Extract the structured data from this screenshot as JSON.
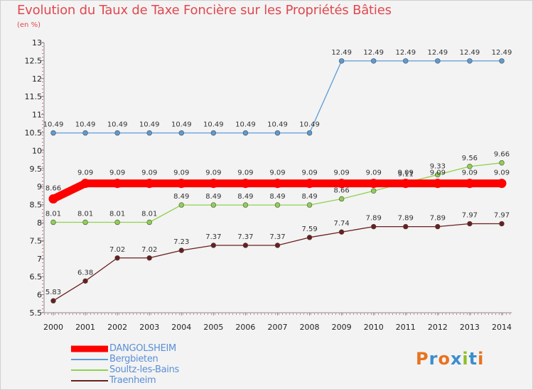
{
  "header": {
    "title": "Evolution du Taux de Taxe Foncière sur les Propriétés Bâties",
    "unit": "(en %)"
  },
  "logo": {
    "letters": [
      "P",
      "r",
      "o",
      "x",
      "i",
      "t",
      "i"
    ],
    "colors": [
      "#e8731e",
      "#3b8ed0",
      "#e8731e",
      "#3b8ed0",
      "#8cbf26",
      "#3b8ed0",
      "#e8731e"
    ]
  },
  "chart_data": {
    "type": "line",
    "title": "Evolution du Taux de Taxe Foncière sur les Propriétés Bâties",
    "ylabel": "(en %)",
    "xlabel": "",
    "ylim": [
      5.5,
      13
    ],
    "yticks": [
      "5.5",
      "6",
      "6.5",
      "7",
      "7.5",
      "8",
      "8.5",
      "9",
      "9.5",
      "10",
      "10.5",
      "11",
      "11.5",
      "12",
      "12.5",
      "13"
    ],
    "x": [
      "2000",
      "2001",
      "2002",
      "2003",
      "2004",
      "2005",
      "2006",
      "2007",
      "2008",
      "2009",
      "2010",
      "2011",
      "2012",
      "2013",
      "2014"
    ],
    "series": [
      {
        "name": "Bergbieten",
        "color": "#5b9bd5",
        "values": [
          10.49,
          10.49,
          10.49,
          10.49,
          10.49,
          10.49,
          10.49,
          10.49,
          10.49,
          12.49,
          12.49,
          12.49,
          12.49,
          12.49,
          12.49
        ],
        "labels": [
          "10.49",
          "10.49",
          "10.49",
          "10.49",
          "10.49",
          "10.49",
          "10.49",
          "10.49",
          "10.49",
          "12.49",
          "12.49",
          "12.49",
          "12.49",
          "12.49",
          "12.49"
        ]
      },
      {
        "name": "Soultz-les-Bains",
        "color": "#8fd14f",
        "values": [
          8.01,
          8.01,
          8.01,
          8.01,
          8.49,
          8.49,
          8.49,
          8.49,
          8.49,
          8.66,
          8.88,
          9.11,
          9.33,
          9.56,
          9.66
        ],
        "labels": [
          "8.01",
          "8.01",
          "8.01",
          "8.01",
          "8.49",
          "8.49",
          "8.49",
          "8.49",
          "8.49",
          "8.66",
          "8.88",
          "9.11",
          "9.33",
          "9.56",
          "9.66"
        ]
      },
      {
        "name": "Traenheim",
        "color": "#6b1e1e",
        "values": [
          5.83,
          6.38,
          7.02,
          7.02,
          7.23,
          7.37,
          7.37,
          7.37,
          7.59,
          7.74,
          7.89,
          7.89,
          7.89,
          7.97,
          7.97
        ],
        "labels": [
          "5.83",
          "6.38",
          "7.02",
          "7.02",
          "7.23",
          "7.37",
          "7.37",
          "7.37",
          "7.59",
          "7.74",
          "7.89",
          "7.89",
          "7.89",
          "7.97",
          "7.97"
        ]
      },
      {
        "name": "DANGOLSHEIM",
        "color": "#ff0000",
        "values": [
          8.66,
          9.09,
          9.09,
          9.09,
          9.09,
          9.09,
          9.09,
          9.09,
          9.09,
          9.09,
          9.09,
          9.09,
          9.09,
          9.09,
          9.09
        ],
        "labels": [
          "8.66",
          "9.09",
          "9.09",
          "9.09",
          "9.09",
          "9.09",
          "9.09",
          "9.09",
          "9.09",
          "9.09",
          "9.09",
          "9.09",
          "9.09",
          "9.09",
          "9.09"
        ]
      }
    ],
    "legend": [
      "DANGOLSHEIM",
      "Bergbieten",
      "Soultz-les-Bains",
      "Traenheim"
    ]
  }
}
